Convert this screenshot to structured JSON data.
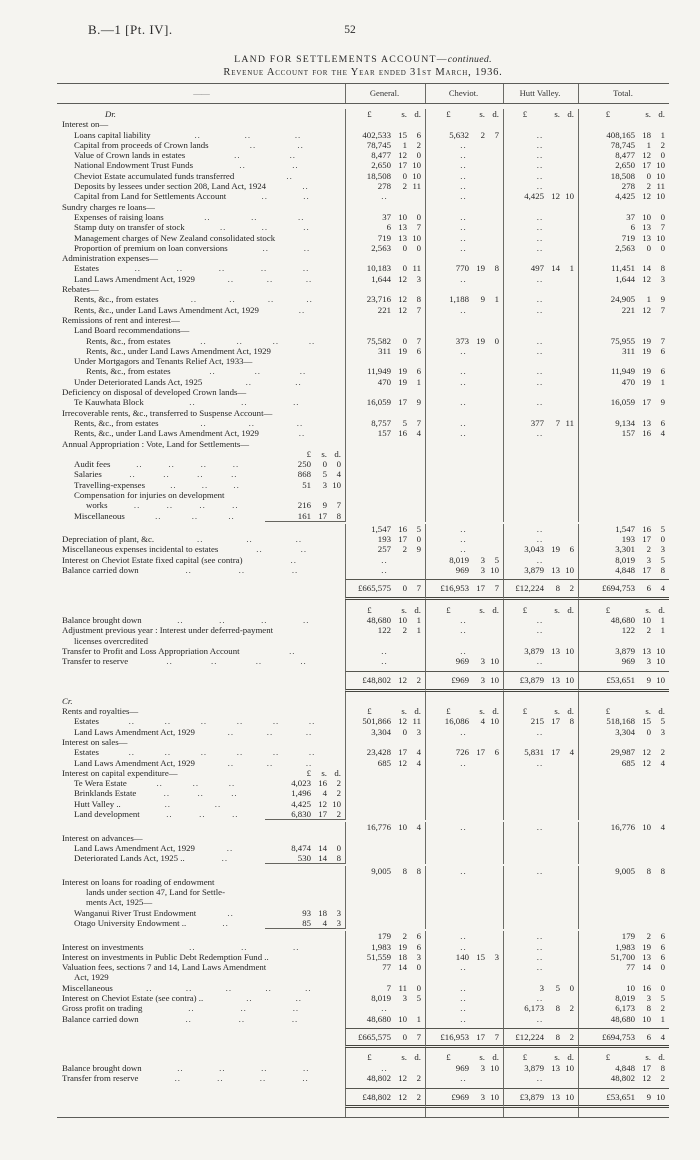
{
  "page": {
    "doc_ref": "B.—1 [Pt. IV].",
    "page_number": "52"
  },
  "title": {
    "line1_main": "LAND FOR SETTLEMENTS ACCOUNT—",
    "line1_cont": "continued.",
    "line2": "Revenue Account for the Year ended 31st March, 1936."
  },
  "table": {
    "label_dash": "——",
    "columns": [
      "General.",
      "Cheviot.",
      "Hutt Valley.",
      "Total."
    ],
    "money_header": {
      "pound": "£",
      "s": "s.",
      "d": "d."
    },
    "sections": [
      {
        "name": "dr-section",
        "rows": [
          {
            "k": "mhead",
            "t": "Dr.",
            "drcr": true
          },
          {
            "k": "r",
            "t": "Interest on—",
            "ind": 0
          },
          {
            "k": "r",
            "t": "Loans capital liability",
            "ind": 1,
            "dots": 3,
            "v": [
              "402,533 15 6",
              "5,632 2 7",
              "..",
              "408,165 18 1"
            ]
          },
          {
            "k": "r",
            "t": "Capital from proceeds of Crown lands",
            "ind": 1,
            "dots": 2,
            "v": [
              "78,745 1 2",
              "..",
              "..",
              "78,745 1 2"
            ]
          },
          {
            "k": "r",
            "t": "Value of Crown lands in estates",
            "ind": 1,
            "dots": 2,
            "v": [
              "8,477 12 0",
              "..",
              "..",
              "8,477 12 0"
            ]
          },
          {
            "k": "r",
            "t": "National Endowment Trust Funds",
            "ind": 1,
            "dots": 2,
            "v": [
              "2,650 17 10",
              "..",
              "..",
              "2,650 17 10"
            ]
          },
          {
            "k": "r",
            "t": "Cheviot Estate accumulated funds transferred",
            "ind": 1,
            "dots": 1,
            "v": [
              "18,508 0 10",
              "..",
              "..",
              "18,508 0 10"
            ]
          },
          {
            "k": "r",
            "t": "Deposits by lessees under section 208, Land Act, 1924",
            "ind": 1,
            "dots": 1,
            "v": [
              "278 2 11",
              "..",
              "..",
              "278 2 11"
            ]
          },
          {
            "k": "r",
            "t": "Capital from Land for Settlements Account",
            "ind": 1,
            "dots": 2,
            "v": [
              "..",
              "..",
              "4,425 12 10",
              "4,425 12 10"
            ]
          },
          {
            "k": "r",
            "t": "Sundry charges re loans—",
            "ind": 0
          },
          {
            "k": "r",
            "t": "Expenses of raising loans",
            "ind": 1,
            "dots": 3,
            "v": [
              "37 10 0",
              "..",
              "..",
              "37 10 0"
            ]
          },
          {
            "k": "r",
            "t": "Stamp duty on transfer of stock",
            "ind": 1,
            "dots": 3,
            "v": [
              "6 13 7",
              "..",
              "..",
              "6 13 7"
            ]
          },
          {
            "k": "r",
            "t": "Management charges of New Zealand consolidated stock",
            "ind": 1,
            "dots": 0,
            "v": [
              "719 13 10",
              "..",
              "..",
              "719 13 10"
            ]
          },
          {
            "k": "r",
            "t": "Proportion of premium on loan conversions",
            "ind": 1,
            "dots": 2,
            "v": [
              "2,563 0 0",
              "..",
              "..",
              "2,563 0 0"
            ]
          },
          {
            "k": "r",
            "t": "Administration expenses—",
            "ind": 0
          },
          {
            "k": "r",
            "t": "Estates",
            "ind": 1,
            "dots": 5,
            "v": [
              "10,183 0 11",
              "770 19 8",
              "497 14 1",
              "11,451 14 8"
            ]
          },
          {
            "k": "r",
            "t": "Land Laws Amendment Act, 1929",
            "ind": 1,
            "dots": 3,
            "v": [
              "1,644 12 3",
              "..",
              "..",
              "1,644 12 3"
            ]
          },
          {
            "k": "r",
            "t": "Rebates—",
            "ind": 0
          },
          {
            "k": "r",
            "t": "Rents, &c., from estates",
            "ind": 1,
            "dots": 4,
            "v": [
              "23,716 12 8",
              "1,188 9 1",
              "..",
              "24,905 1 9"
            ]
          },
          {
            "k": "r",
            "t": "Rents, &c., under Land Laws Amendment Act, 1929",
            "ind": 1,
            "dots": 1,
            "v": [
              "221 12 7",
              "..",
              "..",
              "221 12 7"
            ]
          },
          {
            "k": "r",
            "t": "Remissions of rent and interest—",
            "ind": 0
          },
          {
            "k": "r",
            "t": "Land Board recommendations—",
            "ind": 1
          },
          {
            "k": "r",
            "t": "Rents, &c., from estates",
            "ind": 2,
            "dots": 4,
            "v": [
              "75,582 0 7",
              "373 19 0",
              "..",
              "75,955 19 7"
            ]
          },
          {
            "k": "r",
            "t": "Rents, &c., under Land Laws Amendment Act, 1929",
            "ind": 2,
            "dots": 0,
            "v": [
              "311 19 6",
              "..",
              "..",
              "311 19 6"
            ]
          },
          {
            "k": "r",
            "t": "Under Mortgagors and Tenants Relief Act, 1933—",
            "ind": 1
          },
          {
            "k": "r",
            "t": "Rents, &c., from estates",
            "ind": 2,
            "dots": 3,
            "v": [
              "11,949 19 6",
              "..",
              "..",
              "11,949 19 6"
            ]
          },
          {
            "k": "r",
            "t": "Under Deteriorated Lands Act, 1925",
            "ind": 1,
            "dots": 2,
            "v": [
              "470 19 1",
              "..",
              "..",
              "470 19 1"
            ]
          },
          {
            "k": "r",
            "t": "Deficiency on disposal of developed Crown lands—",
            "ind": 0
          },
          {
            "k": "r",
            "t": "Te Kauwhata Block",
            "ind": 1,
            "dots": 3,
            "v": [
              "16,059 17 9",
              "..",
              "..",
              "16,059 17 9"
            ]
          },
          {
            "k": "r",
            "t": "Irrecoverable rents, &c., transferred to Suspense Account—",
            "ind": 0
          },
          {
            "k": "r",
            "t": "Rents, &c., from estates",
            "ind": 1,
            "dots": 3,
            "v": [
              "8,757 5 7",
              "..",
              "377 7 11",
              "9,134 13 6"
            ]
          },
          {
            "k": "r",
            "t": "Rents, &c., under Land Laws Amendment Act, 1929",
            "ind": 1,
            "dots": 1,
            "v": [
              "157 16 4",
              "..",
              "..",
              "157 16 4"
            ]
          },
          {
            "k": "r",
            "t": "Annual Appropriation : Vote, Land for Settlements—",
            "ind": 0
          },
          {
            "k": "innerhead",
            "t": "",
            "ind": 1
          },
          {
            "k": "r",
            "t": "Audit fees",
            "ind": 1,
            "dots": 4,
            "inner": "250 0 0"
          },
          {
            "k": "r",
            "t": "Salaries",
            "ind": 1,
            "dots": 4,
            "inner": "868 5 4"
          },
          {
            "k": "r",
            "t": "Travelling-expenses",
            "ind": 1,
            "dots": 3,
            "inner": "51 3 10"
          },
          {
            "k": "r",
            "t": "Compensation for injuries on development",
            "ind": 1
          },
          {
            "k": "r",
            "t": "works",
            "ind": 2,
            "dots": 4,
            "inner": "216 9 7"
          },
          {
            "k": "r",
            "t": "Miscellaneous",
            "ind": 1,
            "dots": 3,
            "inner": "161 17 8",
            "innerRule": true
          },
          {
            "k": "r",
            "t": "",
            "gap": 2,
            "v": [
              "1,547 16 5",
              "..",
              "..",
              "1,547 16 5"
            ]
          },
          {
            "k": "r",
            "t": "Depreciation of plant, &c.",
            "ind": 0,
            "dots": 3,
            "v": [
              "193 17 0",
              "..",
              "..",
              "193 17 0"
            ]
          },
          {
            "k": "r",
            "t": "Miscellaneous expenses incidental to estates",
            "ind": 0,
            "dots": 2,
            "v": [
              "257 2 9",
              "..",
              "3,043 19 6",
              "3,301 2 3"
            ]
          },
          {
            "k": "r",
            "t": "Interest on Cheviot Estate fixed capital (see contra)",
            "ind": 0,
            "dots": 1,
            "v": [
              "..",
              "8,019 3 5",
              "..",
              "8,019 3 5"
            ]
          },
          {
            "k": "r",
            "t": "Balance carried down",
            "ind": 0,
            "dots": 3,
            "v": [
              "..",
              "969 3 10",
              "3,879 13 10",
              "4,848 17 8"
            ]
          },
          {
            "k": "gap",
            "h": 4
          },
          {
            "k": "totals",
            "v": [
              "£665,575 0 7",
              "£16,953 17 7",
              "£12,224 8 2",
              "£694,753 6 4"
            ]
          },
          {
            "k": "gap",
            "h": 5
          }
        ]
      },
      {
        "name": "mid-section",
        "rows": [
          {
            "k": "mhead",
            "t": ""
          },
          {
            "k": "r",
            "t": "Balance brought down",
            "ind": 0,
            "dots": 4,
            "v": [
              "48,680 10 1",
              "..",
              "..",
              "48,680 10 1"
            ]
          },
          {
            "k": "r",
            "t": "Adjustment previous year : Interest under deferred-payment",
            "ind": 0,
            "dots": 0,
            "v": [
              "122 2 1",
              "..",
              "..",
              "122 2 1"
            ]
          },
          {
            "k": "r",
            "t": "licenses overcredited",
            "ind": 1
          },
          {
            "k": "r",
            "t": "Transfer to Profit and Loss Appropriation Account",
            "ind": 0,
            "dots": 1,
            "v": [
              "..",
              "..",
              "3,879 13 10",
              "3,879 13 10"
            ]
          },
          {
            "k": "r",
            "t": "Transfer to reserve",
            "ind": 0,
            "dots": 4,
            "v": [
              "..",
              "969 3 10",
              "..",
              "969 3 10"
            ]
          },
          {
            "k": "gap",
            "h": 5
          },
          {
            "k": "totals",
            "v": [
              "£48,802 12 2",
              "£969 3 10",
              "£3,879 13 10",
              "£53,651 9 10"
            ]
          },
          {
            "k": "gap",
            "h": 4
          }
        ]
      },
      {
        "name": "cr-section",
        "rows": [
          {
            "k": "sidehead",
            "t": "Cr."
          },
          {
            "k": "mhead2",
            "t": "Rents and royalties—"
          },
          {
            "k": "r",
            "t": "Estates",
            "ind": 1,
            "dots": 6,
            "v": [
              "501,866 12 11",
              "16,086 4 10",
              "215 17 8",
              "518,168 15 5"
            ]
          },
          {
            "k": "r",
            "t": "Land Laws Amendment Act, 1929",
            "ind": 1,
            "dots": 3,
            "v": [
              "3,304 0 3",
              "..",
              "..",
              "3,304 0 3"
            ]
          },
          {
            "k": "r",
            "t": "Interest on sales—",
            "ind": 0
          },
          {
            "k": "r",
            "t": "Estates",
            "ind": 1,
            "dots": 6,
            "v": [
              "23,428 17 4",
              "726 17 6",
              "5,831 17 4",
              "29,987 12 2"
            ]
          },
          {
            "k": "r",
            "t": "Land Laws Amendment Act, 1929",
            "ind": 1,
            "dots": 3,
            "v": [
              "685 12 4",
              "..",
              "..",
              "685 12 4"
            ]
          },
          {
            "k": "innerhead",
            "t": "Interest on capital expenditure—",
            "ind": 0
          },
          {
            "k": "r",
            "t": "Te Wera Estate",
            "ind": 1,
            "dots": 3,
            "inner": "4,023 16 2"
          },
          {
            "k": "r",
            "t": "Brinklands Estate",
            "ind": 1,
            "dots": 3,
            "inner": "1,496 4 2"
          },
          {
            "k": "r",
            "t": "Hutt Valley ..",
            "ind": 1,
            "dots": 2,
            "inner": "4,425 12 10"
          },
          {
            "k": "r",
            "t": "Land development",
            "ind": 1,
            "dots": 3,
            "inner": "6,830 17 2",
            "innerRule": true
          },
          {
            "k": "r",
            "t": "",
            "gap": 2,
            "v": [
              "16,776 10 4",
              "..",
              "..",
              "16,776 10 4"
            ]
          },
          {
            "k": "r",
            "t": "Interest on advances—",
            "ind": 0
          },
          {
            "k": "r",
            "t": "Land Laws Amendment Act, 1929",
            "ind": 1,
            "dots": 1,
            "inner": "8,474 14 0"
          },
          {
            "k": "r",
            "t": "Deteriorated Lands Act, 1925 ..",
            "ind": 1,
            "dots": 1,
            "inner": "530 14 8",
            "innerRule": true
          },
          {
            "k": "r",
            "t": "",
            "gap": 2,
            "v": [
              "9,005 8 8",
              "..",
              "..",
              "9,005 8 8"
            ]
          },
          {
            "k": "r",
            "t": "Interest on loans for roading of endowment",
            "ind": 0
          },
          {
            "k": "r",
            "t": "lands under section 47, Land for Settle-",
            "ind": 2
          },
          {
            "k": "r",
            "t": "ments Act, 1925—",
            "ind": 2
          },
          {
            "k": "r",
            "t": "Wanganui River Trust Endowment",
            "ind": 1,
            "dots": 1,
            "inner": "93 18 3"
          },
          {
            "k": "r",
            "t": "Otago University Endowment ..",
            "ind": 1,
            "dots": 1,
            "inner": "85 4 3",
            "innerRule": true
          },
          {
            "k": "r",
            "t": "",
            "gap": 2,
            "v": [
              "179 2 6",
              "..",
              "..",
              "179 2 6"
            ]
          },
          {
            "k": "r",
            "t": "Interest on investments",
            "ind": 0,
            "dots": 3,
            "v": [
              "1,983 19 6",
              "..",
              "..",
              "1,983 19 6"
            ]
          },
          {
            "k": "r",
            "t": "Interest on investments in Public Debt Redemption Fund ..",
            "ind": 0,
            "dots": 0,
            "v": [
              "51,559 18 3",
              "140 15 3",
              "..",
              "51,700 13 6"
            ]
          },
          {
            "k": "r",
            "t": "Valuation fees, sections 7 and 14, Land Laws Amendment",
            "ind": 0,
            "dots": 0,
            "v": [
              "77 14 0",
              "..",
              "..",
              "77 14 0"
            ]
          },
          {
            "k": "r",
            "t": "Act, 1929",
            "ind": 1
          },
          {
            "k": "r",
            "t": "Miscellaneous",
            "ind": 0,
            "dots": 5,
            "v": [
              "7 11 0",
              "..",
              "3 5 0",
              "10 16 0"
            ]
          },
          {
            "k": "r",
            "t": "Interest on Cheviot Estate (see contra) ..",
            "ind": 0,
            "dots": 2,
            "v": [
              "8,019 3 5",
              "..",
              "..",
              "8,019 3 5"
            ]
          },
          {
            "k": "r",
            "t": "Gross profit on trading",
            "ind": 0,
            "dots": 3,
            "v": [
              "..",
              "..",
              "6,173 8 2",
              "6,173 8 2"
            ]
          },
          {
            "k": "r",
            "t": "Balance carried down",
            "ind": 0,
            "dots": 3,
            "v": [
              "48,680 10 1",
              "..",
              "..",
              "48,680 10 1"
            ]
          },
          {
            "k": "gap",
            "h": 4
          },
          {
            "k": "totals",
            "v": [
              "£665,575 0 7",
              "£16,953 17 7",
              "£12,224 8 2",
              "£694,753 6 4"
            ]
          },
          {
            "k": "gap",
            "h": 4
          }
        ]
      },
      {
        "name": "bottom-section",
        "rows": [
          {
            "k": "mhead",
            "t": ""
          },
          {
            "k": "r",
            "t": "Balance brought down",
            "ind": 0,
            "dots": 4,
            "v": [
              "..",
              "969 3 10",
              "3,879 13 10",
              "4,848 17 8"
            ]
          },
          {
            "k": "r",
            "t": "Transfer from reserve",
            "ind": 0,
            "dots": 4,
            "v": [
              "48,802 12 2",
              "..",
              "..",
              "48,802 12 2"
            ]
          },
          {
            "k": "gap",
            "h": 5
          },
          {
            "k": "totals",
            "v": [
              "£48,802 12 2",
              "£969 3 10",
              "£3,879 13 10",
              "£53,651 9 10"
            ]
          },
          {
            "k": "gap",
            "h": 9
          }
        ]
      }
    ]
  }
}
